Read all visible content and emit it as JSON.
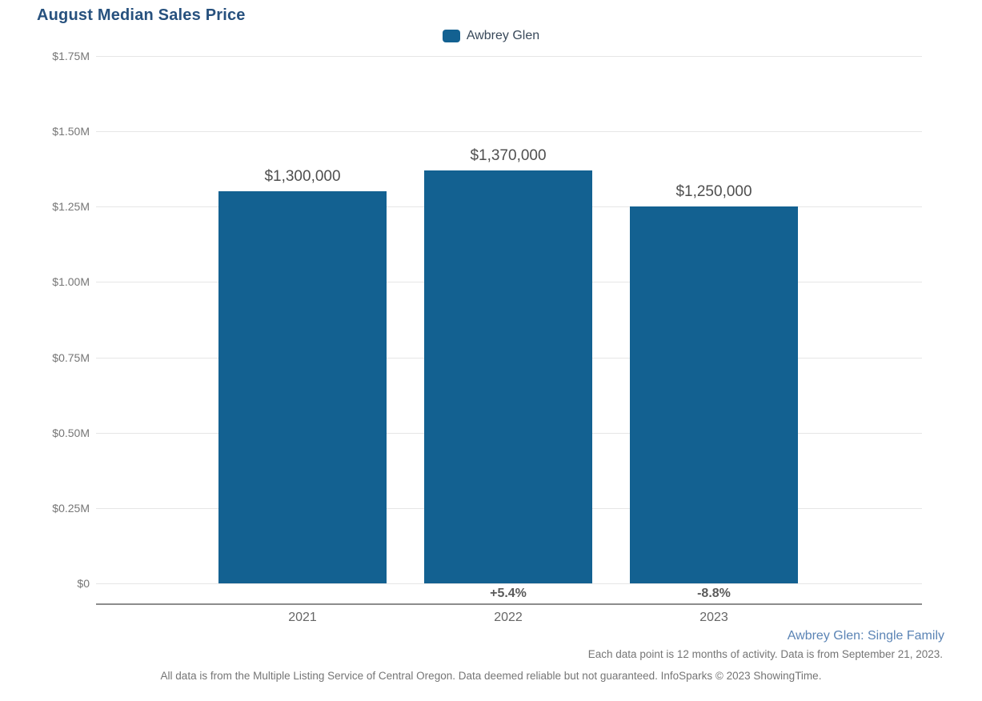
{
  "title": "August Median Sales Price",
  "legend": {
    "items": [
      {
        "label": "Awbrey Glen",
        "color": "#136191"
      }
    ]
  },
  "colors": {
    "bar": "#136191",
    "title_text": "#27517E",
    "gridline": "#e6e6e6",
    "axis_line": "#8c8c8c",
    "tick_label": "#767676",
    "value_label": "#4f4f4f",
    "footer_blue": "#5b84b5",
    "footer_gray": "#757575"
  },
  "chart_data": {
    "type": "bar",
    "title": "August Median Sales Price",
    "categories": [
      "2021",
      "2022",
      "2023"
    ],
    "series": [
      {
        "name": "Awbrey Glen",
        "values": [
          1300000,
          1370000,
          1250000
        ]
      }
    ],
    "value_labels": [
      "$1,300,000",
      "$1,370,000",
      "$1,250,000"
    ],
    "pct_change_labels": [
      "",
      "+5.4%",
      "-8.8%"
    ],
    "xlabel": "",
    "ylabel": "",
    "ylim": [
      0,
      1750000
    ],
    "y_tick_interval": 250000,
    "y_tick_labels_top_to_bottom": [
      "$1.75M",
      "$1.50M",
      "$1.25M",
      "$1.00M",
      "$0.75M",
      "$0.50M",
      "$0.25M",
      "$0"
    ],
    "grid": true,
    "legend_position": "top-center"
  },
  "footer": {
    "segment_label": "Awbrey Glen: Single Family",
    "data_note": "Each data point is 12 months of activity. Data is from September 21, 2023.",
    "disclaimer": "All data is from the Multiple Listing Service of Central Oregon. Data deemed reliable but not guaranteed. InfoSparks © 2023 ShowingTime."
  }
}
